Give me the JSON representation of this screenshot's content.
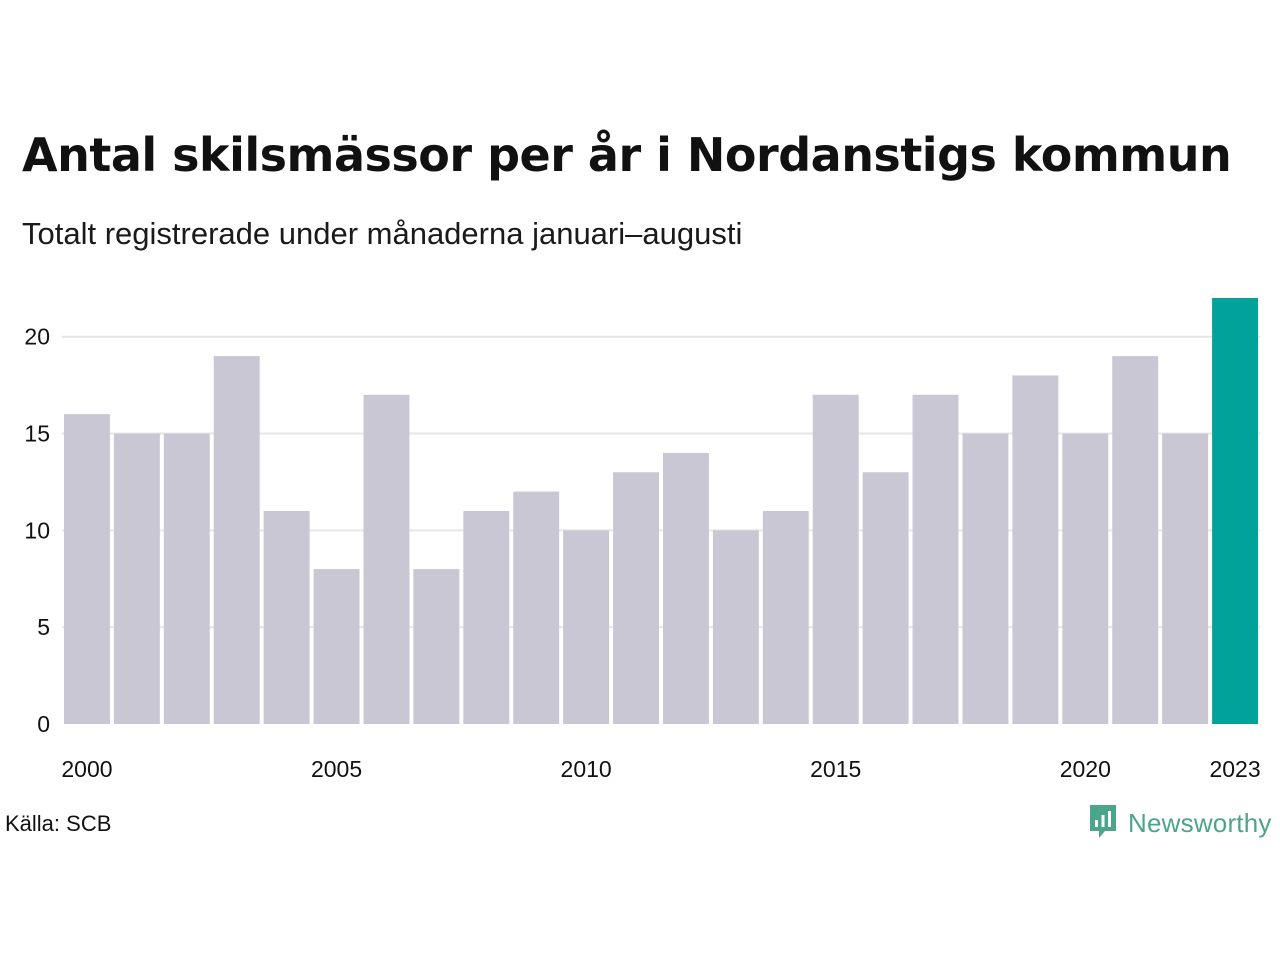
{
  "title": "Antal skilsmässor per år i Nordanstigs kommun",
  "subtitle": "Totalt registrerade under månaderna januari–augusti",
  "source": "Källa: SCB",
  "logo": {
    "text": "Newsworthy",
    "icon": "newsworthy-logo-icon",
    "color": "#4aa58c"
  },
  "colors": {
    "bar": "#c8c7d3",
    "highlight": "#00a29a",
    "grid": "#e6e6e6"
  },
  "chart_data": {
    "type": "bar",
    "categories": [
      "2000",
      "2001",
      "2002",
      "2003",
      "2004",
      "2005",
      "2006",
      "2007",
      "2008",
      "2009",
      "2010",
      "2011",
      "2012",
      "2013",
      "2014",
      "2015",
      "2016",
      "2017",
      "2018",
      "2019",
      "2020",
      "2021",
      "2022",
      "2023"
    ],
    "values": [
      16,
      15,
      15,
      19,
      11,
      8,
      17,
      8,
      11,
      12,
      10,
      13,
      14,
      10,
      11,
      17,
      13,
      17,
      15,
      18,
      15,
      19,
      15,
      22
    ],
    "highlight_category": "2023",
    "x_tick_labels": [
      "2000",
      "2005",
      "2010",
      "2015",
      "2020",
      "2023"
    ],
    "y_ticks": [
      0,
      5,
      10,
      15,
      20
    ],
    "ylim": [
      0,
      22
    ],
    "grid": true,
    "legend": "none",
    "xlabel": "",
    "ylabel": ""
  }
}
